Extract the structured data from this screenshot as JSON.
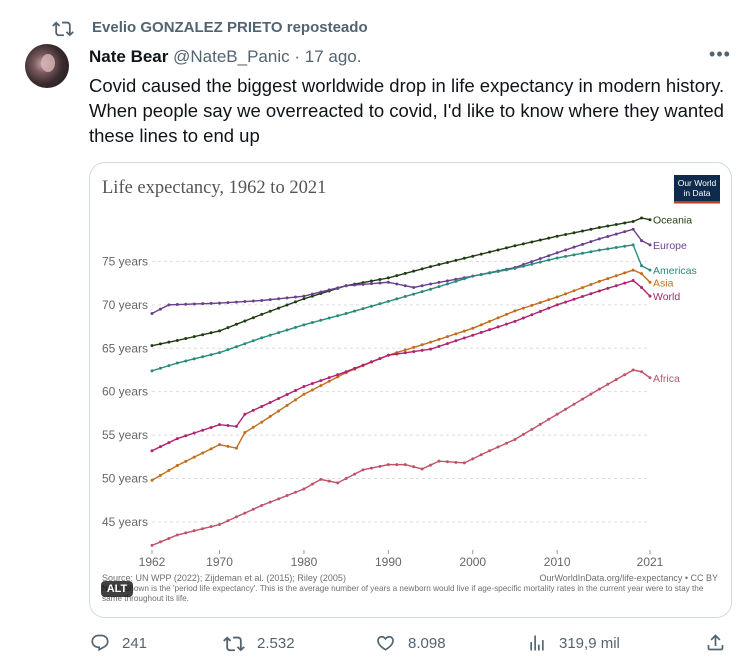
{
  "repost": {
    "label": "Evelio GONZALEZ PRIETO reposteado"
  },
  "tweet": {
    "author_name": "Nate Bear",
    "author_handle": "@NateB_Panic",
    "separator": "·",
    "date": "17 ago.",
    "text": "Covid caused the biggest worldwide drop in life expectancy in modern history. When people say we overreacted to covid, I'd like to know where they wanted these lines to end up"
  },
  "image": {
    "alt_badge": "ALT"
  },
  "actions": {
    "replies": "241",
    "reposts": "2.532",
    "likes": "8.098",
    "views": "319,9 mil"
  },
  "colors": {
    "Oceania": "#1f3d12",
    "Europe": "#6b3f8e",
    "Americas": "#2a8a7c",
    "Asia": "#c06e1c",
    "World": "#b0236f",
    "Africa": "#c0536a"
  },
  "chart_data": {
    "type": "line",
    "title": "Life expectancy, 1962 to 2021",
    "logo": "Our World in Data",
    "x_ticks": [
      1962,
      1970,
      1980,
      1990,
      2000,
      2010,
      2021
    ],
    "y_ticks": [
      "45 years",
      "50 years",
      "55 years",
      "60 years",
      "65 years",
      "70 years",
      "75 years"
    ],
    "y_tick_values": [
      45,
      50,
      55,
      60,
      65,
      70,
      75
    ],
    "xlim": [
      1962,
      2021
    ],
    "ylim": [
      42,
      80
    ],
    "source": "Source: UN WPP (2022); Zijdeman et al. (2015); Riley (2005)",
    "credit": "OurWorldInData.org/life-expectancy • CC BY",
    "note": "Note: Shown is the 'period life expectancy'. This is the average number of years a newborn would live if age-specific mortality rates in the current year were to stay the same throughout its life.",
    "series": [
      {
        "name": "Oceania",
        "points": [
          [
            1962,
            65.3
          ],
          [
            1965,
            65.9
          ],
          [
            1970,
            67.0
          ],
          [
            1975,
            68.9
          ],
          [
            1980,
            70.7
          ],
          [
            1985,
            72.2
          ],
          [
            1990,
            73.1
          ],
          [
            1995,
            74.4
          ],
          [
            2000,
            75.6
          ],
          [
            2005,
            76.8
          ],
          [
            2010,
            77.9
          ],
          [
            2015,
            78.9
          ],
          [
            2019,
            79.6
          ],
          [
            2020,
            80.0
          ],
          [
            2021,
            79.8
          ]
        ]
      },
      {
        "name": "Europe",
        "points": [
          [
            1962,
            69.0
          ],
          [
            1964,
            70.0
          ],
          [
            1970,
            70.2
          ],
          [
            1975,
            70.5
          ],
          [
            1980,
            71.0
          ],
          [
            1985,
            72.2
          ],
          [
            1990,
            72.6
          ],
          [
            1993,
            72.0
          ],
          [
            1995,
            72.4
          ],
          [
            2000,
            73.3
          ],
          [
            2005,
            74.3
          ],
          [
            2010,
            76.0
          ],
          [
            2015,
            77.6
          ],
          [
            2019,
            78.7
          ],
          [
            2020,
            77.4
          ],
          [
            2021,
            76.9
          ]
        ]
      },
      {
        "name": "Americas",
        "points": [
          [
            1962,
            62.4
          ],
          [
            1965,
            63.3
          ],
          [
            1970,
            64.5
          ],
          [
            1975,
            66.2
          ],
          [
            1980,
            67.7
          ],
          [
            1985,
            69.0
          ],
          [
            1990,
            70.4
          ],
          [
            1995,
            71.8
          ],
          [
            2000,
            73.3
          ],
          [
            2005,
            74.2
          ],
          [
            2010,
            75.4
          ],
          [
            2015,
            76.3
          ],
          [
            2019,
            76.9
          ],
          [
            2020,
            74.5
          ],
          [
            2021,
            74.0
          ]
        ]
      },
      {
        "name": "Asia",
        "points": [
          [
            1962,
            49.8
          ],
          [
            1965,
            51.5
          ],
          [
            1970,
            53.9
          ],
          [
            1972,
            53.5
          ],
          [
            1973,
            55.3
          ],
          [
            1975,
            56.5
          ],
          [
            1980,
            59.7
          ],
          [
            1985,
            62.2
          ],
          [
            1990,
            64.2
          ],
          [
            1995,
            65.7
          ],
          [
            2000,
            67.3
          ],
          [
            2005,
            69.3
          ],
          [
            2010,
            70.9
          ],
          [
            2015,
            72.7
          ],
          [
            2019,
            74.0
          ],
          [
            2020,
            73.6
          ],
          [
            2021,
            72.6
          ]
        ]
      },
      {
        "name": "World",
        "points": [
          [
            1962,
            53.2
          ],
          [
            1965,
            54.6
          ],
          [
            1970,
            56.2
          ],
          [
            1972,
            56.0
          ],
          [
            1973,
            57.4
          ],
          [
            1975,
            58.3
          ],
          [
            1980,
            60.6
          ],
          [
            1985,
            62.3
          ],
          [
            1990,
            64.2
          ],
          [
            1995,
            64.9
          ],
          [
            2000,
            66.5
          ],
          [
            2005,
            68.1
          ],
          [
            2010,
            70.0
          ],
          [
            2015,
            71.6
          ],
          [
            2019,
            72.8
          ],
          [
            2020,
            72.0
          ],
          [
            2021,
            71.0
          ]
        ]
      },
      {
        "name": "Africa",
        "points": [
          [
            1962,
            42.3
          ],
          [
            1965,
            43.5
          ],
          [
            1970,
            44.7
          ],
          [
            1975,
            46.9
          ],
          [
            1980,
            48.8
          ],
          [
            1982,
            49.9
          ],
          [
            1984,
            49.5
          ],
          [
            1987,
            51.0
          ],
          [
            1990,
            51.6
          ],
          [
            1992,
            51.6
          ],
          [
            1994,
            51.1
          ],
          [
            1996,
            52.0
          ],
          [
            1999,
            51.8
          ],
          [
            2002,
            53.2
          ],
          [
            2005,
            54.5
          ],
          [
            2010,
            57.4
          ],
          [
            2015,
            60.3
          ],
          [
            2019,
            62.5
          ],
          [
            2020,
            62.3
          ],
          [
            2021,
            61.6
          ]
        ]
      }
    ]
  }
}
